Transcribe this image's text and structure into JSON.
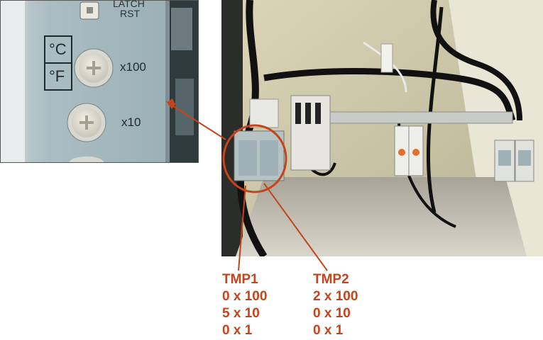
{
  "zoom": {
    "latch_label": "LATCH",
    "rst_label": "RST",
    "celsius": "°C",
    "fahrenheit": "°F",
    "x100": "x100",
    "x10": "x10"
  },
  "tmp1": {
    "title": "TMP1",
    "x100": "0 x 100",
    "x10": "5 x 10",
    "x1": "0 x 1"
  },
  "tmp2": {
    "title": "TMP2",
    "x100": "2 x 100",
    "x10": "0 x 10",
    "x1": "0 x 1"
  },
  "colors": {
    "accent": "#c4441b"
  }
}
